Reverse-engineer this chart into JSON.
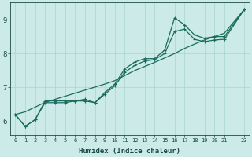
{
  "xlabel": "Humidex (Indice chaleur)",
  "bg_color": "#cceae7",
  "line_color": "#1a6b5e",
  "grid_color": "#aad4d0",
  "xlim_min": -0.5,
  "xlim_max": 23.5,
  "ylim_min": 5.6,
  "ylim_max": 9.5,
  "xticks": [
    0,
    1,
    2,
    3,
    4,
    5,
    6,
    7,
    8,
    9,
    10,
    11,
    12,
    13,
    14,
    15,
    16,
    17,
    18,
    19,
    20,
    21,
    23
  ],
  "yticks": [
    6,
    7,
    8,
    9
  ],
  "x": [
    0,
    1,
    2,
    3,
    4,
    5,
    6,
    7,
    8,
    9,
    10,
    11,
    12,
    13,
    14,
    15,
    16,
    17,
    18,
    19,
    20,
    21,
    23
  ],
  "y_jagged": [
    6.2,
    5.85,
    6.05,
    6.6,
    6.6,
    6.6,
    6.6,
    6.65,
    6.55,
    6.85,
    7.1,
    7.55,
    7.75,
    7.85,
    7.85,
    8.1,
    9.05,
    8.85,
    8.55,
    8.45,
    8.5,
    8.5,
    9.3
  ],
  "y_smooth": [
    6.2,
    5.85,
    6.05,
    6.55,
    6.55,
    6.55,
    6.6,
    6.6,
    6.55,
    6.8,
    7.05,
    7.45,
    7.65,
    7.78,
    7.82,
    8.0,
    8.65,
    8.72,
    8.42,
    8.35,
    8.4,
    8.42,
    9.3
  ],
  "y_linear": [
    6.2,
    6.28,
    6.42,
    6.56,
    6.65,
    6.74,
    6.83,
    6.92,
    7.01,
    7.1,
    7.2,
    7.35,
    7.5,
    7.62,
    7.74,
    7.87,
    8.0,
    8.15,
    8.28,
    8.4,
    8.5,
    8.6,
    9.3
  ]
}
